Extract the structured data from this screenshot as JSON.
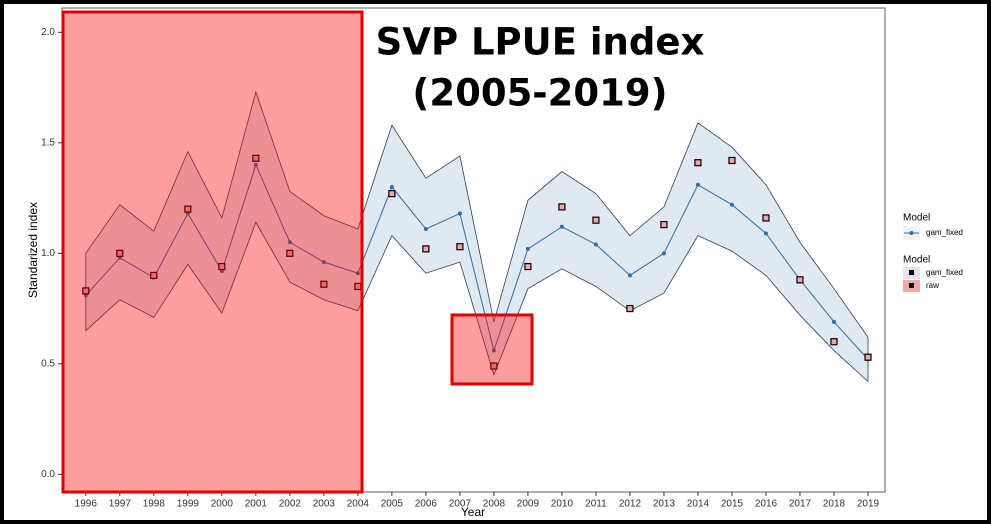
{
  "chart_data": {
    "type": "line",
    "title": "SVP LPUE index",
    "subtitle": "(2005-2019)",
    "x_label": "Year",
    "y_label": "Standarized index",
    "x": [
      1996,
      1997,
      1998,
      1999,
      2000,
      2001,
      2002,
      2003,
      2004,
      2005,
      2006,
      2007,
      2008,
      2009,
      2010,
      2011,
      2012,
      2013,
      2014,
      2015,
      2016,
      2017,
      2018,
      2019
    ],
    "xlim": [
      1995.3,
      2019.5
    ],
    "xticks": [
      1996,
      1997,
      1998,
      1999,
      2000,
      2001,
      2002,
      2003,
      2004,
      2005,
      2006,
      2007,
      2008,
      2009,
      2010,
      2011,
      2012,
      2013,
      2014,
      2015,
      2016,
      2017,
      2018,
      2019
    ],
    "ylim": [
      -0.08,
      2.11
    ],
    "yticks": [
      {
        "value": 0,
        "label": "0.0"
      },
      0.5,
      {
        "value": 1,
        "label": "1.0"
      },
      1.5,
      {
        "value": 2,
        "label": "2.0"
      }
    ],
    "legend_titles": [
      "Model",
      "Model"
    ],
    "series": [
      {
        "name": "gam_fixed",
        "color": "#2c6ea6",
        "ribbon_color": "#dbe4ef",
        "values": [
          0.81,
          0.98,
          0.89,
          1.18,
          0.92,
          1.4,
          1.05,
          0.96,
          0.91,
          1.3,
          1.11,
          1.18,
          0.56,
          1.02,
          1.12,
          1.04,
          0.9,
          1.0,
          1.31,
          1.22,
          1.09,
          0.88,
          0.69,
          0.52
        ],
        "upper": [
          1.0,
          1.22,
          1.1,
          1.46,
          1.16,
          1.73,
          1.28,
          1.17,
          1.11,
          1.58,
          1.34,
          1.44,
          0.69,
          1.24,
          1.37,
          1.27,
          1.08,
          1.21,
          1.59,
          1.48,
          1.31,
          1.05,
          0.84,
          0.62
        ],
        "lower": [
          0.65,
          0.79,
          0.71,
          0.95,
          0.73,
          1.14,
          0.87,
          0.79,
          0.74,
          1.08,
          0.91,
          0.96,
          0.45,
          0.84,
          0.93,
          0.85,
          0.74,
          0.82,
          1.08,
          1.01,
          0.9,
          0.72,
          0.56,
          0.42
        ]
      },
      {
        "name": "raw",
        "color": "#f4a6a6",
        "values": [
          0.83,
          1.0,
          0.9,
          1.2,
          0.94,
          1.43,
          1.0,
          0.86,
          0.85,
          1.27,
          1.02,
          1.03,
          0.49,
          0.94,
          1.21,
          1.15,
          0.75,
          1.13,
          1.41,
          1.42,
          1.16,
          0.88,
          0.6,
          0.53
        ]
      }
    ]
  }
}
